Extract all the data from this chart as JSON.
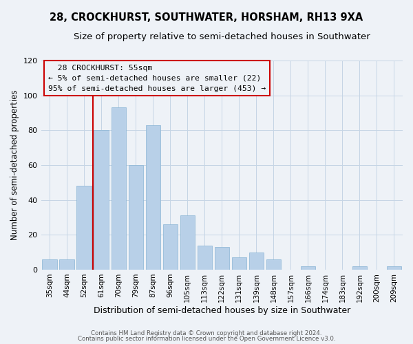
{
  "title": "28, CROCKHURST, SOUTHWATER, HORSHAM, RH13 9XA",
  "subtitle": "Size of property relative to semi-detached houses in Southwater",
  "xlabel": "Distribution of semi-detached houses by size in Southwater",
  "ylabel": "Number of semi-detached properties",
  "categories": [
    "35sqm",
    "44sqm",
    "52sqm",
    "61sqm",
    "70sqm",
    "79sqm",
    "87sqm",
    "96sqm",
    "105sqm",
    "113sqm",
    "122sqm",
    "131sqm",
    "139sqm",
    "148sqm",
    "157sqm",
    "166sqm",
    "174sqm",
    "183sqm",
    "192sqm",
    "200sqm",
    "209sqm"
  ],
  "values": [
    6,
    6,
    48,
    80,
    93,
    60,
    83,
    26,
    31,
    14,
    13,
    7,
    10,
    6,
    0,
    2,
    0,
    0,
    2,
    0,
    2
  ],
  "bar_color": "#b8d0e8",
  "highlight_index": 2,
  "highlight_color": "#cc0000",
  "highlight_label": "28 CROCKHURST: 55sqm",
  "pct_smaller": "5% of semi-detached houses are smaller (22)",
  "pct_larger": "95% of semi-detached houses are larger (453)",
  "ylim": [
    0,
    120
  ],
  "yticks": [
    0,
    20,
    40,
    60,
    80,
    100,
    120
  ],
  "footer1": "Contains HM Land Registry data © Crown copyright and database right 2024.",
  "footer2": "Contains public sector information licensed under the Open Government Licence v3.0.",
  "background_color": "#eef2f7",
  "plot_background": "#eef2f7",
  "title_fontsize": 10.5,
  "subtitle_fontsize": 9.5
}
